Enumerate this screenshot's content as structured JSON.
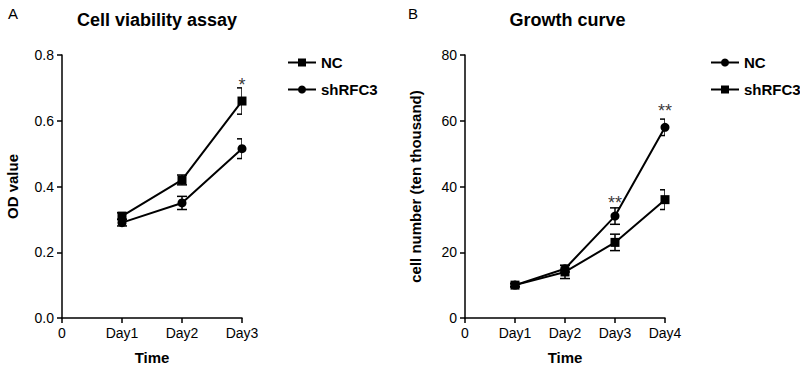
{
  "chart_data": [
    {
      "type": "line",
      "panel": "A",
      "title": "Cell viability assay",
      "x_label": "Time",
      "y_label": "OD value",
      "categories": [
        "0",
        "Day1",
        "Day2",
        "Day3"
      ],
      "ylim": [
        0,
        0.8
      ],
      "yticks": [
        {
          "value": 0,
          "label": "0.0"
        },
        0.2,
        0.4,
        0.6,
        0.8
      ],
      "grid": false,
      "legend": "right",
      "series": [
        {
          "name": "NC",
          "color": "#000000",
          "marker": "square",
          "line_style": "solid",
          "values": [
            null,
            0.31,
            0.42,
            0.66
          ],
          "errors": [
            null,
            0.01,
            0.015,
            0.04
          ]
        },
        {
          "name": "shRFC3",
          "color": "#000000",
          "marker": "circle",
          "line_style": "solid",
          "values": [
            null,
            0.29,
            0.35,
            0.515
          ],
          "errors": [
            null,
            0.01,
            0.02,
            0.03
          ]
        }
      ],
      "annotations": [
        {
          "text": "*",
          "x": "Day3",
          "y": 0.71
        }
      ]
    },
    {
      "type": "line",
      "panel": "B",
      "title": "Growth curve",
      "x_label": "Time",
      "y_label": "cell number (ten thousand)",
      "categories": [
        "0",
        "Day1",
        "Day2",
        "Day3",
        "Day4"
      ],
      "ylim": [
        0,
        80
      ],
      "yticks": [
        0,
        20,
        40,
        60,
        80
      ],
      "grid": false,
      "legend": "right",
      "series": [
        {
          "name": "NC",
          "color": "#000000",
          "marker": "circle",
          "line_style": "solid",
          "values": [
            null,
            10,
            15,
            31,
            58
          ],
          "errors": [
            null,
            0.5,
            1,
            2.5,
            2.5
          ]
        },
        {
          "name": "shRFC3",
          "color": "#000000",
          "marker": "square",
          "line_style": "solid",
          "values": [
            null,
            10,
            14,
            23,
            36
          ],
          "errors": [
            null,
            0.5,
            2,
            2.5,
            3
          ]
        }
      ],
      "annotations": [
        {
          "text": "**",
          "x": "Day3",
          "y": 35
        },
        {
          "text": "**",
          "x": "Day4",
          "y": 63
        }
      ]
    }
  ]
}
